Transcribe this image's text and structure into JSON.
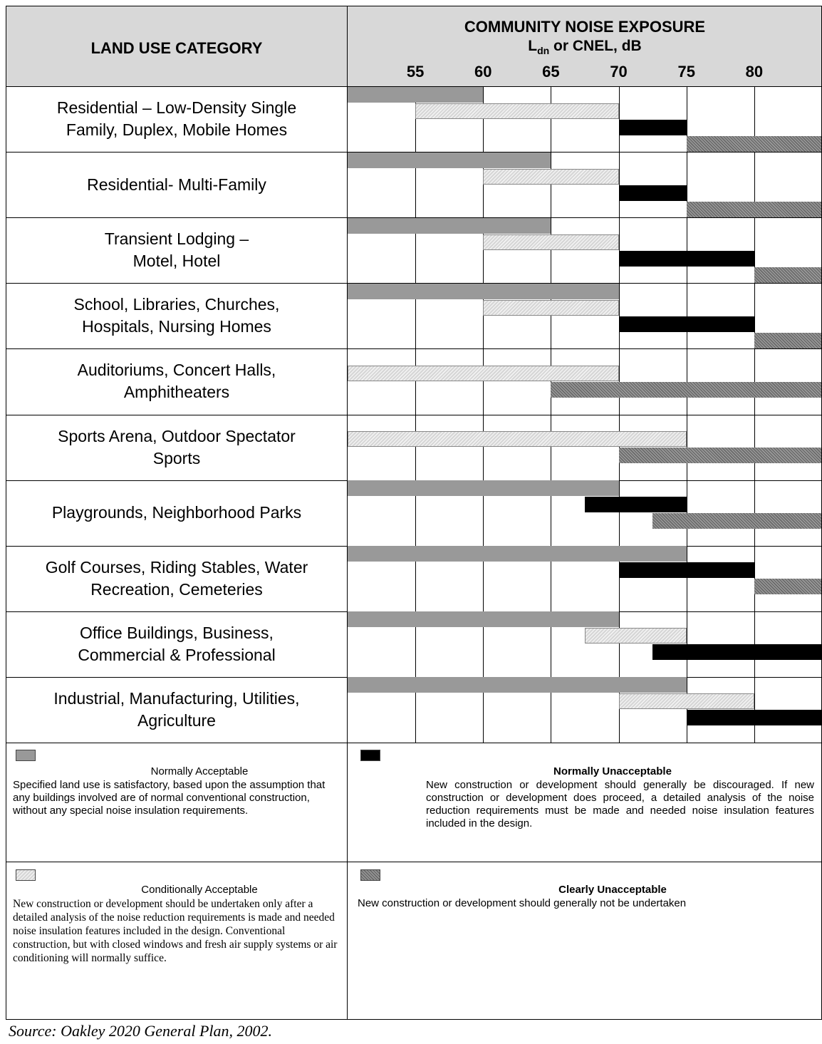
{
  "header": {
    "land_use_title": "LAND USE CATEGORY",
    "exposure_title": "COMMUNITY NOISE EXPOSURE",
    "exposure_sub_prefix": "L",
    "exposure_sub_subscript": "dn",
    "exposure_sub_suffix": " or CNEL, dB"
  },
  "chart_data": {
    "type": "bar",
    "orientation": "horizontal-range",
    "x_ticks": [
      55,
      60,
      65,
      70,
      75,
      80
    ],
    "xlim": [
      50,
      85
    ],
    "categories": [
      {
        "label": [
          "Residential – Low-Density Single",
          "Family, Duplex, Mobile Homes"
        ],
        "ranges": {
          "normally_acceptable": [
            50,
            60
          ],
          "conditionally_acceptable": [
            55,
            70
          ],
          "normally_unacceptable": [
            70,
            75
          ],
          "clearly_unacceptable": [
            75,
            85
          ]
        }
      },
      {
        "label": [
          "Residential- Multi-Family"
        ],
        "ranges": {
          "normally_acceptable": [
            50,
            65
          ],
          "conditionally_acceptable": [
            60,
            70
          ],
          "normally_unacceptable": [
            70,
            75
          ],
          "clearly_unacceptable": [
            75,
            85
          ]
        }
      },
      {
        "label": [
          "Transient Lodging –",
          "Motel, Hotel"
        ],
        "ranges": {
          "normally_acceptable": [
            50,
            65
          ],
          "conditionally_acceptable": [
            60,
            70
          ],
          "normally_unacceptable": [
            70,
            80
          ],
          "clearly_unacceptable": [
            80,
            85
          ]
        }
      },
      {
        "label": [
          "School, Libraries, Churches,",
          "Hospitals, Nursing Homes"
        ],
        "ranges": {
          "normally_acceptable": [
            50,
            70
          ],
          "conditionally_acceptable": [
            60,
            70
          ],
          "normally_unacceptable": [
            70,
            80
          ],
          "clearly_unacceptable": [
            80,
            85
          ]
        }
      },
      {
        "label": [
          "Auditoriums, Concert Halls,",
          "Amphitheaters"
        ],
        "ranges": {
          "conditionally_acceptable": [
            50,
            70
          ],
          "clearly_unacceptable": [
            65,
            85
          ]
        }
      },
      {
        "label": [
          "Sports Arena, Outdoor Spectator",
          "Sports"
        ],
        "ranges": {
          "conditionally_acceptable": [
            50,
            75
          ],
          "clearly_unacceptable": [
            70,
            85
          ]
        }
      },
      {
        "label": [
          "Playgrounds, Neighborhood Parks"
        ],
        "ranges": {
          "normally_acceptable": [
            50,
            70
          ],
          "normally_unacceptable": [
            67.5,
            75
          ],
          "clearly_unacceptable": [
            72.5,
            85
          ]
        }
      },
      {
        "label": [
          "Golf Courses, Riding Stables, Water",
          "Recreation, Cemeteries"
        ],
        "ranges": {
          "normally_acceptable": [
            50,
            75
          ],
          "normally_unacceptable": [
            70,
            80
          ],
          "clearly_unacceptable": [
            80,
            85
          ]
        }
      },
      {
        "label": [
          "Office Buildings, Business,",
          "Commercial & Professional"
        ],
        "ranges": {
          "normally_acceptable": [
            50,
            70
          ],
          "conditionally_acceptable": [
            67.5,
            75
          ],
          "normally_unacceptable": [
            72.5,
            85
          ]
        }
      },
      {
        "label": [
          "Industrial, Manufacturing, Utilities,",
          "Agriculture"
        ],
        "ranges": {
          "normally_acceptable": [
            50,
            75
          ],
          "conditionally_acceptable": [
            70,
            80
          ],
          "normally_unacceptable": [
            75,
            85
          ]
        }
      }
    ]
  },
  "legend": {
    "normally_acceptable": {
      "title": "Normally Acceptable",
      "description": "Specified land use is satisfactory, based upon the assumption that any buildings involved are of normal conventional construction, without any special noise insulation requirements.",
      "color": "#999999"
    },
    "normally_unacceptable": {
      "title": "Normally Unacceptable",
      "description": "New construction or development should generally be discouraged. If new construction or development does proceed, a detailed analysis of the noise reduction requirements must be made and needed noise insulation features included in the design.",
      "color": "#000000"
    },
    "conditionally_acceptable": {
      "title": "Conditionally Acceptable",
      "description": "New construction or development should be undertaken only after a detailed analysis of the noise reduction requirements is made and needed noise insulation features included in the design. Conventional construction, but with closed windows and fresh air supply systems or air conditioning will normally suffice.",
      "color": "#d6d6d6"
    },
    "clearly_unacceptable": {
      "title": "Clearly Unacceptable",
      "description": "New construction or development should generally not be undertaken",
      "color": "#6a6a6a"
    }
  },
  "source": "Source: Oakley 2020 General Plan, 2002."
}
